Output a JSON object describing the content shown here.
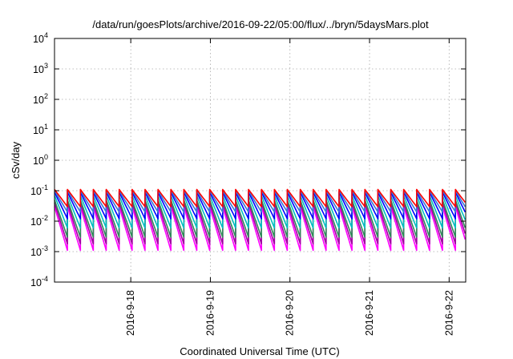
{
  "chart_data": {
    "type": "line",
    "title": "/data/run/goesPlots/archive/2016-09-22/05:00/flux/../bryn/5daysMars.plot",
    "xlabel": "Coordinated Universal Time (UTC)",
    "ylabel": "cSv/day",
    "yscale": "log",
    "ylim": [
      0.0001,
      10000
    ],
    "ytick_labels": [
      {
        "base": "10",
        "exp": "-4",
        "value": 0.0001
      },
      {
        "base": "10",
        "exp": "-3",
        "value": 0.001
      },
      {
        "base": "10",
        "exp": "-2",
        "value": 0.01
      },
      {
        "base": "10",
        "exp": "-1",
        "value": 0.1
      },
      {
        "base": "10",
        "exp": "0",
        "value": 1
      },
      {
        "base": "10",
        "exp": "1",
        "value": 10
      },
      {
        "base": "10",
        "exp": "2",
        "value": 100
      },
      {
        "base": "10",
        "exp": "3",
        "value": 1000
      },
      {
        "base": "10",
        "exp": "4",
        "value": 10000
      }
    ],
    "xlim": [
      "2016-09-17T01:00",
      "2016-09-22T05:00"
    ],
    "xtick_labels": [
      "2016-9-18",
      "2016-9-19",
      "2016-9-20",
      "2016-9-21",
      "2016-9-22"
    ],
    "xtick_values": [
      "2016-09-18",
      "2016-09-19",
      "2016-09-20",
      "2016-09-21",
      "2016-09-22"
    ],
    "grid": true,
    "sawtooth_period_hours": 3.9,
    "series": [
      {
        "color": "#ff00ff",
        "peak": 0.03,
        "trough": 0.0011
      },
      {
        "color": "#a000a0",
        "peak": 0.04,
        "trough": 0.0018
      },
      {
        "color": "#2e8b57",
        "peak": 0.05,
        "trough": 0.003
      },
      {
        "color": "#00bfbf",
        "peak": 0.07,
        "trough": 0.006
      },
      {
        "color": "#0000ff",
        "peak": 0.09,
        "trough": 0.012
      },
      {
        "color": "#3a78d6",
        "peak": 0.1,
        "trough": 0.02
      },
      {
        "color": "#ff0000",
        "peak": 0.11,
        "trough": 0.03
      }
    ]
  }
}
